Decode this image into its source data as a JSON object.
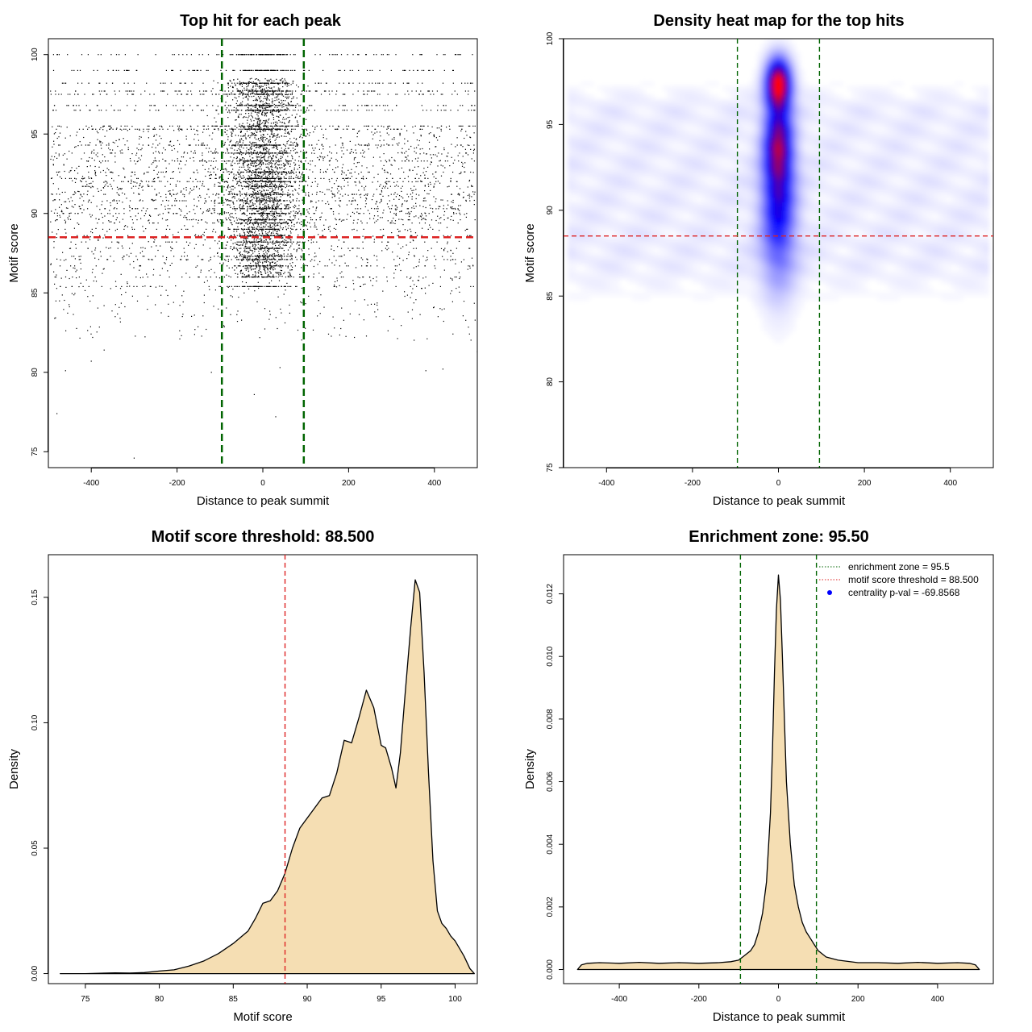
{
  "colors": {
    "threshold": "#dd2222",
    "zone": "#006400",
    "density_fill": "#f5deb3",
    "heat_low": "#ffffff",
    "heat_mid": "#0000ff",
    "heat_high": "#ff0000",
    "point": "#000000",
    "pval_point": "#0000ff"
  },
  "chart_data": [
    {
      "id": "scatter",
      "type": "scatter",
      "title": "Top hit for each peak",
      "xlabel": "Distance to peak summit",
      "ylabel": "Motif score",
      "xlim": [
        -500,
        500
      ],
      "ylim": [
        74,
        101
      ],
      "xticks": [
        -400,
        -200,
        0,
        200,
        400
      ],
      "yticks": [
        75,
        80,
        85,
        90,
        95,
        100
      ],
      "vlines": [
        -95.5,
        95.5
      ],
      "hline": 88.5,
      "score_levels": [
        100,
        99,
        98.2,
        97.7,
        97.5,
        96.8,
        96.5,
        95.5,
        95.3,
        94.3,
        93.8,
        93.3,
        92.6,
        92.2,
        92.0,
        91.7,
        91.2,
        90.8,
        90.3,
        90.0,
        89.6,
        89.4,
        89.0,
        88.6,
        88.2,
        87.8,
        87.3,
        87.1,
        86.7,
        86.0,
        85.4
      ],
      "isolated_points": [
        {
          "x": -300,
          "y": 74.6
        },
        {
          "x": -480,
          "y": 77.4
        },
        {
          "x": 30,
          "y": 77.2
        },
        {
          "x": -20,
          "y": 78.6
        },
        {
          "x": -120,
          "y": 80.0
        },
        {
          "x": -460,
          "y": 80.1
        },
        {
          "x": -400,
          "y": 80.7
        },
        {
          "x": 380,
          "y": 80.1
        },
        {
          "x": 420,
          "y": 80.2
        },
        {
          "x": 500,
          "y": 81.3
        },
        {
          "x": -370,
          "y": 81.4
        },
        {
          "x": 40,
          "y": 80.3
        }
      ]
    },
    {
      "id": "heatmap",
      "type": "heatmap",
      "title": "Density heat map for the top hits",
      "xlabel": "Distance to peak summit",
      "ylabel": "Motif score",
      "xlim": [
        -500,
        500
      ],
      "ylim": [
        75,
        100
      ],
      "xticks": [
        -400,
        -200,
        0,
        200,
        400
      ],
      "yticks": [
        75,
        80,
        85,
        90,
        95,
        100
      ],
      "vlines": [
        -95.5,
        95.5
      ],
      "hline": 88.5,
      "peaks": [
        {
          "x": 0,
          "y": 97.4,
          "sx": 20,
          "sy": 1.0,
          "w": 1.0
        },
        {
          "x": 0,
          "y": 94.0,
          "sx": 22,
          "sy": 1.6,
          "w": 0.62
        },
        {
          "x": 0,
          "y": 91.0,
          "sx": 25,
          "sy": 2.2,
          "w": 0.42
        },
        {
          "x": 0,
          "y": 88.0,
          "sx": 30,
          "sy": 2.5,
          "w": 0.2
        }
      ],
      "background_band": [
        84,
        98
      ]
    },
    {
      "id": "score-density",
      "type": "area",
      "title": "Motif score threshold: 88.500",
      "xlabel": "Motif score",
      "ylabel": "Density",
      "xlim": [
        72.5,
        101.5
      ],
      "ylim": [
        -0.004,
        0.167
      ],
      "xticks": [
        75,
        80,
        85,
        90,
        95,
        100
      ],
      "yticks": [
        0.0,
        0.05,
        0.1,
        0.15
      ],
      "ytick_labels": [
        "0.00",
        "0.05",
        "0.10",
        "0.15"
      ],
      "vline": 88.5,
      "x": [
        73.3,
        75,
        77,
        78,
        79,
        80,
        81,
        82,
        83,
        84,
        85,
        86,
        86.5,
        87,
        87.5,
        88,
        88.5,
        89,
        89.5,
        90,
        90.5,
        91,
        91.5,
        92,
        92.5,
        93,
        93.5,
        94,
        94.5,
        95,
        95.3,
        95.7,
        96,
        96.3,
        96.6,
        97,
        97.3,
        97.6,
        97.9,
        98.2,
        98.5,
        98.8,
        99.1,
        99.4,
        99.7,
        100,
        100.3,
        100.6,
        101,
        101.3
      ],
      "y": [
        0.0,
        0.0,
        0.0003,
        0.0002,
        0.0004,
        0.001,
        0.0015,
        0.003,
        0.005,
        0.008,
        0.012,
        0.017,
        0.022,
        0.028,
        0.029,
        0.033,
        0.04,
        0.05,
        0.058,
        0.062,
        0.066,
        0.07,
        0.071,
        0.08,
        0.093,
        0.092,
        0.102,
        0.113,
        0.106,
        0.091,
        0.09,
        0.082,
        0.074,
        0.088,
        0.11,
        0.138,
        0.157,
        0.152,
        0.12,
        0.08,
        0.045,
        0.025,
        0.02,
        0.018,
        0.015,
        0.013,
        0.01,
        0.007,
        0.002,
        0.0
      ]
    },
    {
      "id": "distance-density",
      "type": "area",
      "title": "Enrichment zone: 95.50",
      "xlabel": "Distance to peak summit",
      "ylabel": "Density",
      "xlim": [
        -540,
        540
      ],
      "ylim": [
        -0.00045,
        0.01325
      ],
      "xticks": [
        -400,
        -200,
        0,
        200,
        400
      ],
      "yticks": [
        0.0,
        0.002,
        0.004,
        0.006,
        0.008,
        0.01,
        0.012
      ],
      "ytick_labels": [
        "0.000",
        "0.002",
        "0.004",
        "0.006",
        "0.008",
        "0.010",
        "0.012"
      ],
      "vlines": [
        -95.5,
        95.5
      ],
      "x": [
        -505,
        -495,
        -480,
        -450,
        -400,
        -350,
        -300,
        -250,
        -200,
        -150,
        -120,
        -100,
        -90,
        -80,
        -70,
        -60,
        -50,
        -40,
        -30,
        -20,
        -15,
        -10,
        -5,
        0,
        5,
        10,
        15,
        20,
        30,
        40,
        50,
        60,
        70,
        80,
        90,
        100,
        120,
        150,
        200,
        250,
        300,
        350,
        400,
        450,
        480,
        495,
        505
      ],
      "y": [
        0.0,
        0.00015,
        0.0002,
        0.00022,
        0.0002,
        0.00023,
        0.0002,
        0.00022,
        0.0002,
        0.00022,
        0.00025,
        0.0003,
        0.0004,
        0.0005,
        0.0006,
        0.0008,
        0.0012,
        0.0018,
        0.0028,
        0.005,
        0.007,
        0.0095,
        0.0115,
        0.0126,
        0.0118,
        0.01,
        0.008,
        0.006,
        0.004,
        0.0027,
        0.002,
        0.0015,
        0.0012,
        0.001,
        0.0008,
        0.0006,
        0.0004,
        0.0003,
        0.00022,
        0.00022,
        0.0002,
        0.00023,
        0.0002,
        0.00022,
        0.0002,
        0.00015,
        0.0
      ],
      "legend": [
        {
          "label": "enrichment zone = 95.5",
          "style": "dotted",
          "color": "#006400"
        },
        {
          "label": "motif score threshold = 88.500",
          "style": "dotted",
          "color": "#dd2222"
        },
        {
          "label": "centrality p-val = -69.8568",
          "style": "point",
          "color": "#0000ff"
        }
      ],
      "legend_position": "top-right"
    }
  ]
}
